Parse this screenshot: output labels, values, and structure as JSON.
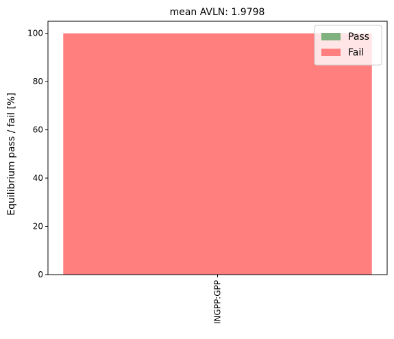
{
  "chart_data": {
    "type": "bar",
    "stacked": true,
    "title": "mean AVLN: 1.9798",
    "ylabel": "Equilibrium pass / fail [%]",
    "xlabel": "",
    "categories": [
      "INGPP:GPP"
    ],
    "series": [
      {
        "name": "Pass",
        "values": [
          0
        ],
        "color": "#7fb27f"
      },
      {
        "name": "Fail",
        "values": [
          100
        ],
        "color": "#ff7f7f"
      }
    ],
    "ylim": [
      0,
      105
    ],
    "yticks": [
      0,
      20,
      40,
      60,
      80,
      100
    ],
    "grid": false,
    "legend": "top-right",
    "x_tick_rotation": 90
  }
}
